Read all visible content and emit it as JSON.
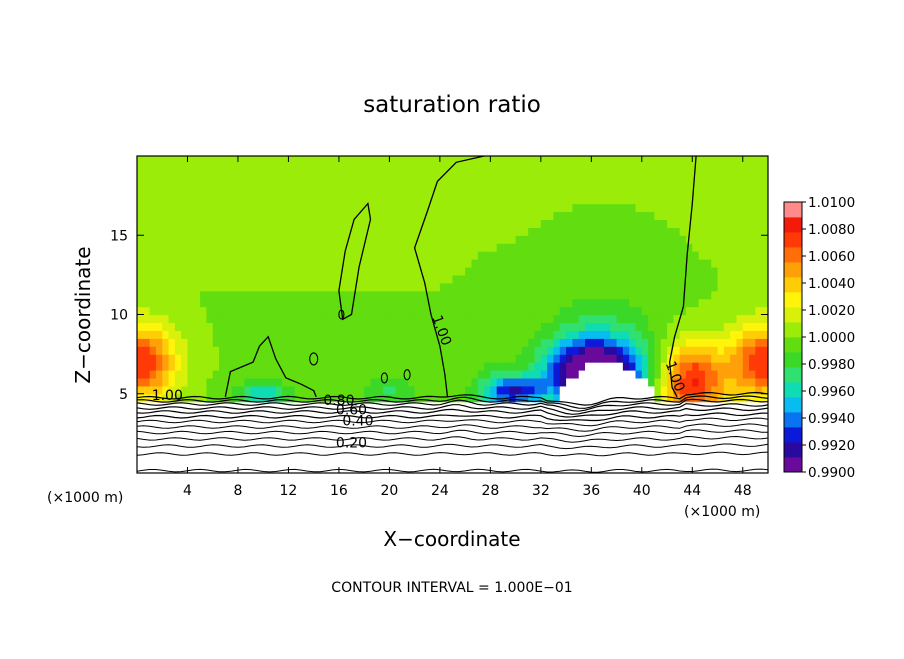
{
  "chart_data": {
    "type": "heatmap",
    "title": "saturation ratio",
    "xlabel": "X−coordinate",
    "ylabel": "Z−coordinate",
    "x_unit_label": "(×1000 m)",
    "z_unit_label": "(×1000 m)",
    "xlim": [
      0,
      50
    ],
    "ylim": [
      0,
      20
    ],
    "x_ticks": [
      "4",
      "8",
      "12",
      "16",
      "20",
      "24",
      "28",
      "32",
      "36",
      "40",
      "44",
      "48"
    ],
    "y_ticks": [
      "5",
      "10",
      "15"
    ],
    "colorbar": {
      "min": 0.99,
      "max": 1.01,
      "tick_labels": [
        "1.0100",
        "1.0080",
        "1.0060",
        "1.0040",
        "1.0020",
        "1.0000",
        "0.9980",
        "0.9960",
        "0.9940",
        "0.9920",
        "0.9900"
      ],
      "colors": [
        "#6a0a9a",
        "#2a0a9e",
        "#0a1ad8",
        "#0a74f0",
        "#08bcf2",
        "#10dcb4",
        "#30e070",
        "#3cd828",
        "#62dd10",
        "#9cec0a",
        "#d8f00a",
        "#fff40a",
        "#ffcc08",
        "#ffa008",
        "#ff6e08",
        "#ff3a06",
        "#f41a0a",
        "#ff8a8a"
      ]
    },
    "contour_interval_text": "CONTOUR INTERVAL = 1.000E−01",
    "contour_labels": [
      {
        "text": "1.00",
        "x": 2.4,
        "z": 4.6
      },
      {
        "text": "0.80",
        "x": 16.0,
        "z": 4.3
      },
      {
        "text": "0.60",
        "x": 17.0,
        "z": 3.7
      },
      {
        "text": "0.40",
        "x": 17.5,
        "z": 3.0
      },
      {
        "text": "0.20",
        "x": 17.0,
        "z": 1.6
      },
      {
        "text": "1.00",
        "x": 23.8,
        "z": 8.9
      },
      {
        "text": "1.00",
        "x": 42.3,
        "z": 6.0
      }
    ],
    "field_features": [
      {
        "kind": "high",
        "x": 0.5,
        "z": 7.0,
        "value": 1.0075
      },
      {
        "kind": "high",
        "x": 49.5,
        "z": 7.0,
        "value": 1.0075
      },
      {
        "kind": "high",
        "x": 44.0,
        "z": 5.8,
        "value": 1.008
      },
      {
        "kind": "low",
        "x": 36.0,
        "z": 6.3,
        "value": 0.9905
      },
      {
        "kind": "low",
        "x": 30.0,
        "z": 5.2,
        "value": 0.993
      },
      {
        "kind": "low",
        "x": 10.0,
        "z": 5.0,
        "value": 0.996
      },
      {
        "kind": "low",
        "x": 20.0,
        "z": 5.1,
        "value": 0.9975
      }
    ]
  }
}
